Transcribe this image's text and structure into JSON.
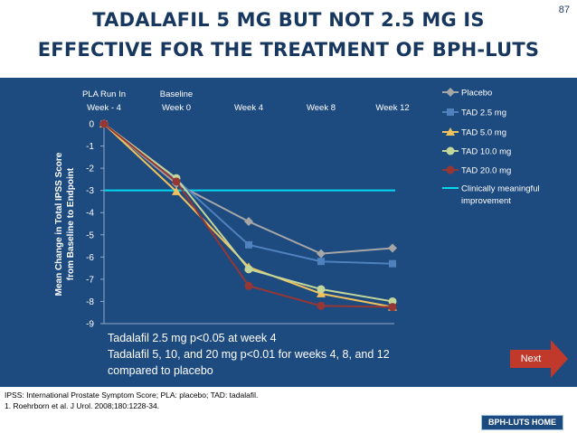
{
  "slide": {
    "title_line1": "TADALAFIL 5 MG BUT NOT 2.5 MG IS",
    "title_line2": "EFFECTIVE FOR THE TREATMENT OF BPH-LUTS",
    "number": "87"
  },
  "notes": {
    "line1": "Tadalafil 2.5 mg p<0.05 at week 4",
    "line2": "Tadalafil 5, 10, and 20 mg p<0.01 for weeks 4, 8, and 12",
    "line3": "compared to placebo"
  },
  "footnotes": {
    "abbrev": "IPSS: International Prostate Symptom Score; PLA: placebo; TAD: tadalafil.",
    "ref": "1. Roehrborn et al. J Urol. 2008;180:1228-34."
  },
  "buttons": {
    "next": "Next",
    "home": "BPH-LUTS HOME"
  },
  "colors": {
    "panel": "#1d4a7f",
    "title": "#17375e",
    "accent": "#c0392b",
    "placebo": "#a6a6a6",
    "tad25": "#4f81bd",
    "tad50": "#f0c25e",
    "tad100": "#c4d79b",
    "tad200": "#953735",
    "threshold": "#00d8f0"
  },
  "chart_data": {
    "type": "line",
    "categories": [
      "PLA Run In\nWeek - 4",
      "Baseline\nWeek 0",
      "Week 4",
      "Week 8",
      "Week 12"
    ],
    "ylabel": "Mean Change in Total IPSS Score\nfrom Baseline to Endpoint",
    "ylim": [
      -9,
      0
    ],
    "yticks": [
      "0",
      "-1",
      "-2",
      "-3",
      "-4",
      "-5",
      "-6",
      "-7",
      "-8",
      "-9"
    ],
    "grid": false,
    "legend_position": "right",
    "series": [
      {
        "name": "Placebo",
        "values": [
          0,
          -2.7,
          -4.4,
          -5.85,
          -5.6
        ],
        "marker": "diamond",
        "color": "#a6a6a6"
      },
      {
        "name": "TAD 2.5 mg",
        "values": [
          0,
          -2.5,
          -5.45,
          -6.2,
          -6.3
        ],
        "marker": "square",
        "color": "#4f81bd"
      },
      {
        "name": "TAD 5.0 mg",
        "values": [
          0,
          -3.05,
          -6.45,
          -7.65,
          -8.25
        ],
        "marker": "triangle",
        "color": "#f0c25e"
      },
      {
        "name": "TAD 10.0 mg",
        "values": [
          0,
          -2.45,
          -6.55,
          -7.45,
          -8.0
        ],
        "marker": "circle",
        "color": "#c4d79b"
      },
      {
        "name": "TAD 20.0 mg",
        "values": [
          0,
          -2.6,
          -7.3,
          -8.2,
          -8.25
        ],
        "marker": "circle",
        "color": "#953735"
      }
    ],
    "reference_line": {
      "name": "Clinically meaningful improvement",
      "value": -3,
      "color": "#00d8f0"
    }
  }
}
